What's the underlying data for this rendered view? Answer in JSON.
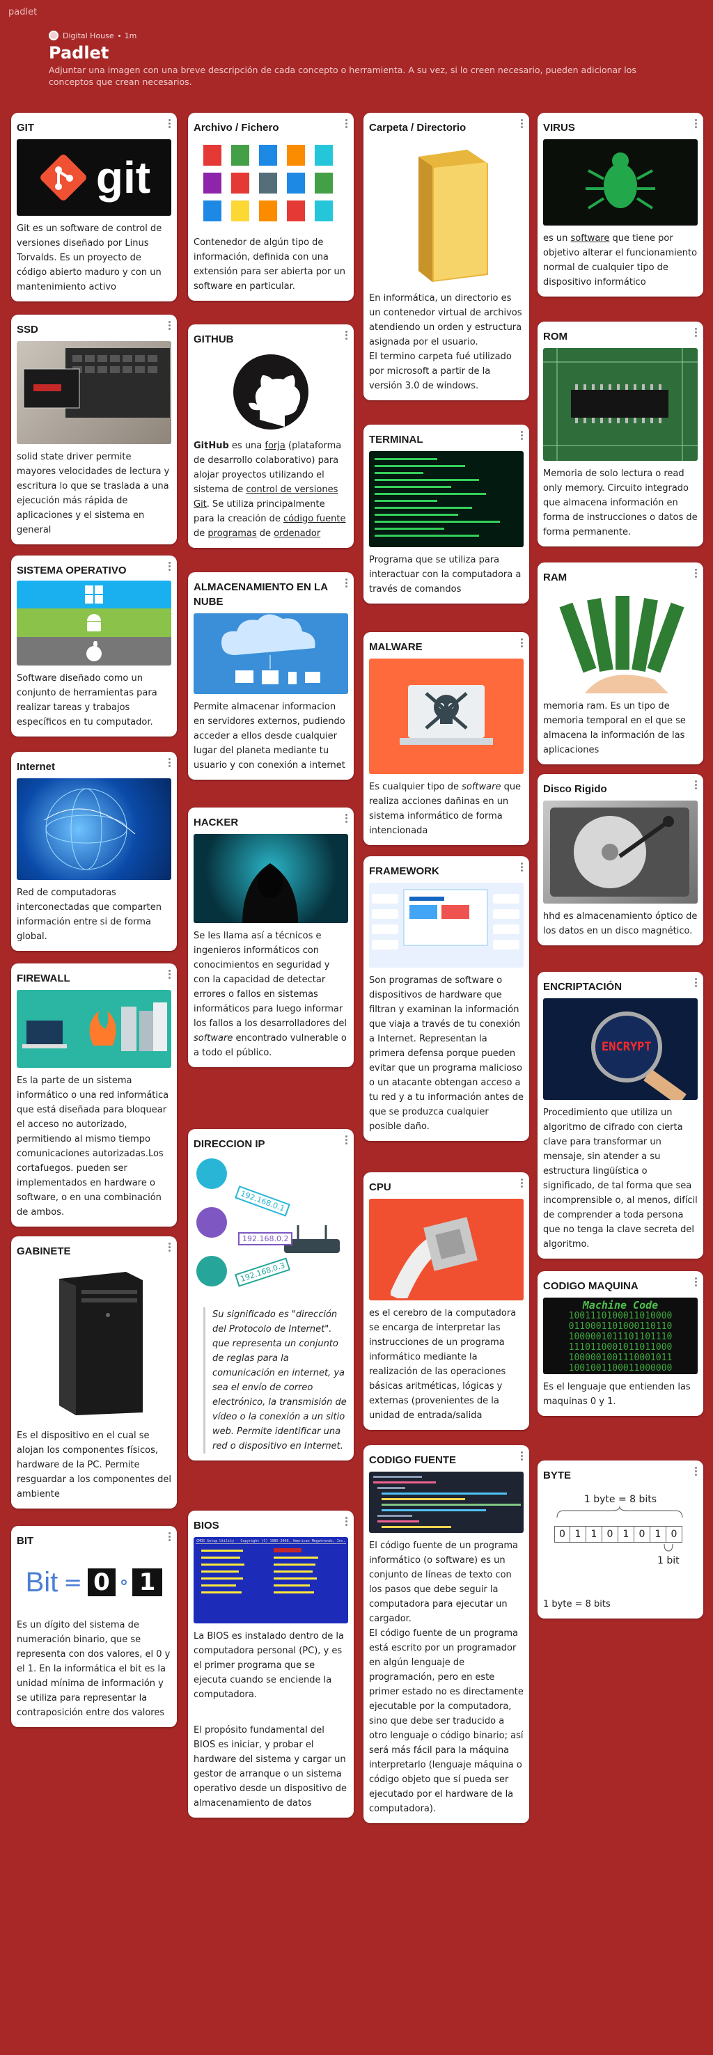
{
  "app": {
    "name": "padlet"
  },
  "header": {
    "author": "Digital House",
    "age": "1m",
    "title": "Padlet",
    "description": "Adjuntar una imagen con una breve descripción de cada concepto o herramienta. A su vez, si lo creen necesario, pueden adicionar los conceptos que crean necesarios."
  },
  "cards": {
    "git": {
      "title": "GIT",
      "body": "Git es un software de control de versiones diseñado por Linus Torvalds. Es un proyecto de código abierto maduro y con un mantenimiento activo",
      "logo": "git"
    },
    "ssd": {
      "title": "SSD",
      "body": "solid state driver permite mayores velocidades de lectura y escritura lo que se traslada a una ejecución más rápida de aplicaciones y el sistema en general"
    },
    "so": {
      "title": "SISTEMA OPERATIVO",
      "body": "Software diseñado como un conjunto de herramientas para realizar tareas y trabajos específicos en tu computador."
    },
    "internet": {
      "title": "Internet",
      "body": "Red de computadoras interconectadas que comparten información entre si de forma global."
    },
    "firewall": {
      "title": "FIREWALL",
      "body": "Es la parte de un sistema informático o una red informática que está diseñada para bloquear el acceso no autorizado, permitiendo al mismo tiempo comunicaciones autorizadas.Los cortafuegos. pueden ser implementados en hardware o software, o en una combinación de ambos."
    },
    "gabinete": {
      "title": "GABINETE",
      "body": "Es el dispositivo en el cual se alojan los componentes físicos, hardware de la PC. Permite resguardar a los componentes del ambiente"
    },
    "bit": {
      "title": "BIT",
      "body": "Es un dígito del sistema de numeración binario, que se representa con dos valores, el 0 y el 1. En la informática el bit es la unidad mínima de información y se utiliza para representar la contraposición entre dos valores",
      "img_word": "Bit",
      "img_eq": "=",
      "img_zero": "0",
      "img_one": "1"
    },
    "archivo": {
      "title": "Archivo / Fichero",
      "body": "Contenedor de algún tipo de información, definida con una extensión para ser abierta por un software en particular."
    },
    "github": {
      "title": "GITHUB",
      "b1": "GitHub",
      "b2": " es una ",
      "b3": "forja",
      "b4": " (plataforma de desarrollo colaborativo) para alojar proyectos utilizando el sistema de ",
      "b5": "control de versiones",
      "b6": " ",
      "b7": "Git",
      "b8": ". Se utiliza principalmente para la creación de ",
      "b9": "código fuente",
      "b10": " de ",
      "b11": "programas",
      "b12": " de ",
      "b13": "ordenador"
    },
    "nube": {
      "title": "ALMACENAMIENTO EN LA NUBE",
      "body": "Permite almacenar informacion en servidores externos, pudiendo acceder a ellos desde cualquier lugar del planeta mediante tu usuario y con conexión a internet"
    },
    "hacker": {
      "title": "HACKER",
      "b1": "Se les llama así a técnicos e ingenieros informáticos con conocimientos en seguridad y con la capacidad de detectar errores o fallos en sistemas informáticos para luego informar los fallos a los desarrolladores del ",
      "b2": "software",
      "b3": " encontrado vulnerable o a todo el público."
    },
    "ip": {
      "title": "DIRECCION IP",
      "body": "Su significado es \"dirección del Protocolo de Internet\". que representa un conjunto de reglas para la comunicación en internet, ya sea el envío de correo electrónico, la transmisión de vídeo o la conexión a un sitio web. Permite identificar una red o dispositivo en Internet.",
      "ip1": "192.168.0.1",
      "ip2": "192.168.0.2",
      "ip3": "192.168.0.3"
    },
    "bios": {
      "title": "BIOS",
      "body1": "La BIOS es instalado dentro de la computadora personal (PC), y es el primer programa que se ejecuta cuando se enciende la computadora.",
      "body2": "El propósito fundamental del BIOS es iniciar, y probar el hardware del sistema y cargar un gestor de arranque o un sistema operativo desde un dispositivo de almacenamiento de datos",
      "screen": "CMOS Setup Utility - Copyright (C) 1985-2006, American Megatrends, Inc."
    },
    "carpeta": {
      "title": "Carpeta / Directorio",
      "body": "En informática, un directorio es un contenedor virtual de archivos atendiendo un orden y estructura asignada por el usuario.\nEl termino carpeta fué utilizado por microsoft a partir de la versión 3.0 de windows."
    },
    "terminal": {
      "title": "TERMINAL",
      "body": "Programa que se utiliza para interactuar con la computadora a través de comandos"
    },
    "malware": {
      "title": "MALWARE",
      "b1": "Es cualquier tipo de ",
      "b2": "software",
      "b3": " que realiza acciones dañinas en un sistema informático de forma intencionada"
    },
    "framework": {
      "title": "FRAMEWORK",
      "body": "Son programas de software o dispositivos de hardware que filtran y examinan la información que viaja a través de tu conexión a Internet. Representan la primera defensa porque pueden evitar que un programa malicioso o un atacante obtengan acceso a tu red y a tu información antes de que se produzca cualquier posible daño."
    },
    "cpu": {
      "title": "CPU",
      "body": "es el cerebro de la computadora se encarga de  interpretar las instrucciones de un programa informático mediante la realización de las operaciones básicas aritméticas, lógicas y externas (provenientes de la unidad de entrada/salida"
    },
    "codigofuente": {
      "title": "CODIGO FUENTE",
      "body": "El código fuente de un programa informático (o software) es un conjunto de líneas de texto con los pasos que debe seguir la computadora para ejecutar un cargador.\nEl código fuente de un programa está escrito por un programador en algún lenguaje de programación, pero en este primer estado no es directamente ejecutable por la computadora, sino que debe ser traducido a otro lenguaje o código binario; así será más fácil para la máquina interpretarlo (lenguaje máquina o código objeto que sí pueda ser ejecutado por el hardware de la computadora)."
    },
    "virus": {
      "title": "VIRUS",
      "b1": "es un ",
      "b2": "software",
      "b3": " que tiene por objetivo alterar el funcionamiento normal de cualquier tipo de dispositivo informático"
    },
    "rom": {
      "title": "ROM",
      "body": "Memoria de solo lectura o read only memory. Circuito integrado que almacena información en forma de instrucciones o datos de forma permanente."
    },
    "ram": {
      "title": "RAM",
      "body": "memoria ram. Es un tipo de memoria temporal en el que se almacena la información de las aplicaciones"
    },
    "disco": {
      "title": "Disco Rigido",
      "body": "hhd es almacenamiento óptico de los datos en un disco magnético."
    },
    "encriptacion": {
      "title": "ENCRIPTACIÓN",
      "body": "Procedimiento que utiliza un algoritmo de cifrado con cierta clave para transformar un mensaje, sin atender a su estructura lingüística o significado, de tal forma que sea incomprensible o, al menos, difícil de comprender a toda persona que no tenga la clave secreta del algoritmo.",
      "img_text": "ENCRYPT"
    },
    "codigomaquina": {
      "title": "CODIGO MAQUINA",
      "body": "Es el lenguaje que entienden las maquinas 0 y 1.",
      "img_title": "Machine Code",
      "img_lines": [
        "1001110100011010000",
        "0110001101000110110",
        "1000001011101101110",
        "1110110001011011000",
        "1000001001110001011",
        "1001001100011000000"
      ]
    },
    "byte": {
      "title": "BYTE",
      "body": "1 byte = 8 bits",
      "img_top": "1 byte = 8 bits",
      "img_bits": [
        "0",
        "1",
        "1",
        "0",
        "1",
        "0",
        "1",
        "0"
      ],
      "img_bottom": "1 bit"
    }
  },
  "colors": {
    "background": "#a82828",
    "card": "#ffffff"
  }
}
